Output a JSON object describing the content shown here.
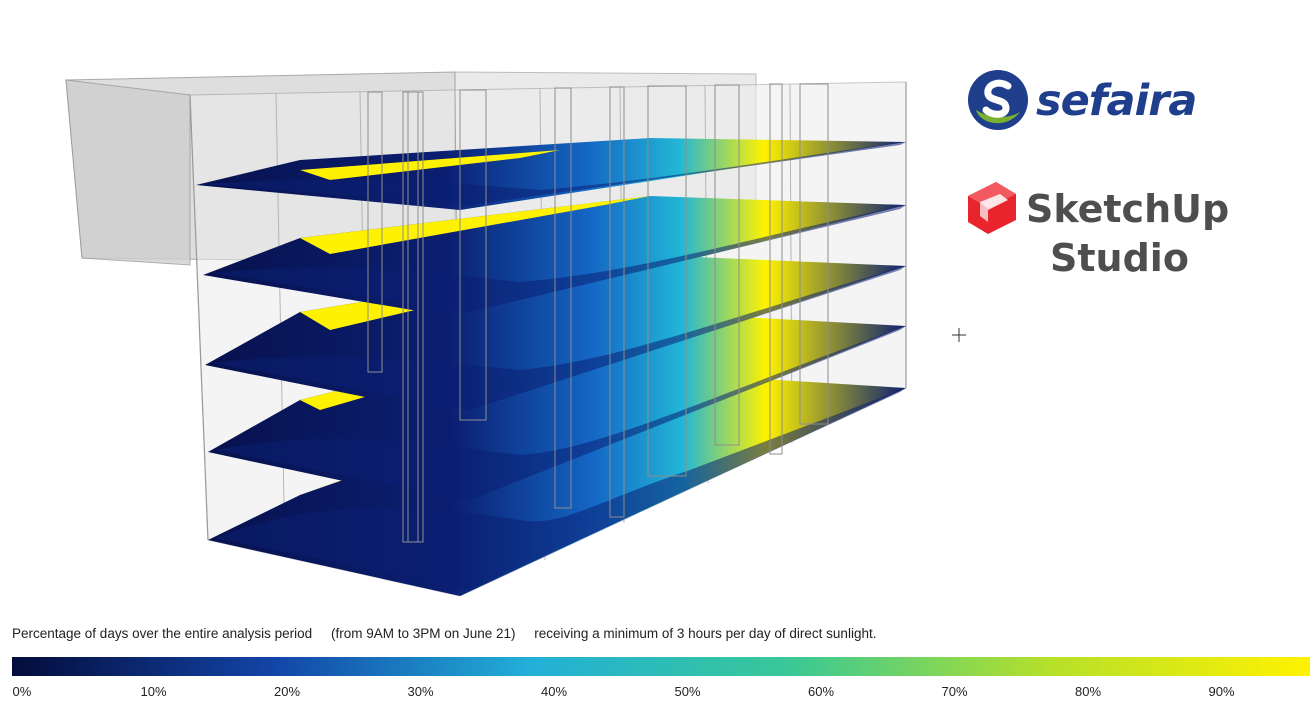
{
  "caption": {
    "part1": "Percentage of days over the entire analysis period",
    "part2": "(from 9AM to 3PM on June 21)",
    "part3": "receiving a minimum of 3 hours per day of direct sunlight."
  },
  "logos": {
    "sefaira": "sefaira",
    "sketchup_line1": "SketchUp",
    "sketchup_line2": "Studio"
  },
  "colorbar": {
    "ticks": [
      "0%",
      "10%",
      "20%",
      "30%",
      "40%",
      "50%",
      "60%",
      "70%",
      "80%",
      "90%"
    ],
    "colors": [
      "#040c3c",
      "#1244a6",
      "#22b0d8",
      "#39c896",
      "#b6e02a",
      "#fff200"
    ]
  },
  "building": {
    "floor_count": 5,
    "colors": {
      "low": "#07114d",
      "mid": "#1666c8",
      "cyan": "#22b6d6",
      "high": "#fff200",
      "frame": "#a9a9a9"
    }
  }
}
